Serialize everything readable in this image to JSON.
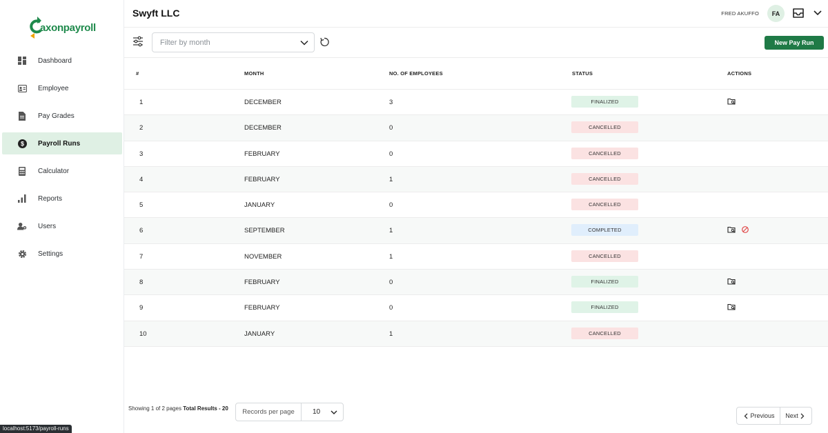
{
  "brand": {
    "name": "axonpayroll",
    "accent": "#1f8a4c"
  },
  "sidebar": {
    "items": [
      {
        "label": "Dashboard",
        "icon": "dashboard-icon",
        "active": false
      },
      {
        "label": "Employee",
        "icon": "id-card-icon",
        "active": false
      },
      {
        "label": "Pay Grades",
        "icon": "document-icon",
        "active": false
      },
      {
        "label": "Payroll Runs",
        "icon": "dollar-circle-icon",
        "active": true
      },
      {
        "label": "Calculator",
        "icon": "calculator-icon",
        "active": false
      },
      {
        "label": "Reports",
        "icon": "bar-chart-icon",
        "active": false
      },
      {
        "label": "Users",
        "icon": "users-gear-icon",
        "active": false
      },
      {
        "label": "Settings",
        "icon": "gear-icon",
        "active": false
      }
    ]
  },
  "header": {
    "company": "Swyft LLC",
    "user_name": "FRED AKUFFO",
    "avatar_initials": "FA"
  },
  "toolbar": {
    "filter_placeholder": "Filter by month",
    "new_button": "New Pay Run"
  },
  "table": {
    "columns": [
      "#",
      "MONTH",
      "NO. OF EMPLOYEES",
      "STATUS",
      "ACTIONS"
    ],
    "rows": [
      {
        "num": "1",
        "month": "DECEMBER",
        "employees": "3",
        "status": "FINALIZED",
        "actions": [
          "view"
        ]
      },
      {
        "num": "2",
        "month": "DECEMBER",
        "employees": "0",
        "status": "CANCELLED",
        "actions": []
      },
      {
        "num": "3",
        "month": "FEBRUARY",
        "employees": "0",
        "status": "CANCELLED",
        "actions": []
      },
      {
        "num": "4",
        "month": "FEBRUARY",
        "employees": "1",
        "status": "CANCELLED",
        "actions": []
      },
      {
        "num": "5",
        "month": "JANUARY",
        "employees": "0",
        "status": "CANCELLED",
        "actions": []
      },
      {
        "num": "6",
        "month": "SEPTEMBER",
        "employees": "1",
        "status": "COMPLETED",
        "actions": [
          "view",
          "cancel"
        ]
      },
      {
        "num": "7",
        "month": "NOVEMBER",
        "employees": "1",
        "status": "CANCELLED",
        "actions": []
      },
      {
        "num": "8",
        "month": "FEBRUARY",
        "employees": "0",
        "status": "FINALIZED",
        "actions": [
          "view"
        ]
      },
      {
        "num": "9",
        "month": "FEBRUARY",
        "employees": "0",
        "status": "FINALIZED",
        "actions": [
          "view"
        ]
      },
      {
        "num": "10",
        "month": "JANUARY",
        "employees": "1",
        "status": "CANCELLED",
        "actions": []
      }
    ]
  },
  "footer": {
    "showing_prefix": "Showing 1 of 2 pages",
    "total_label": "Total Results - 20",
    "records_label": "Records per page",
    "records_value": "10",
    "prev_label": "Previous",
    "next_label": "Next"
  },
  "status_bar_url": "localhost:5173/payroll-runs",
  "colors": {
    "finalized_bg": "#dff3e7",
    "cancelled_bg": "#fbe2e2",
    "completed_bg": "#e0eefc",
    "primary_button": "#1f7a46"
  }
}
